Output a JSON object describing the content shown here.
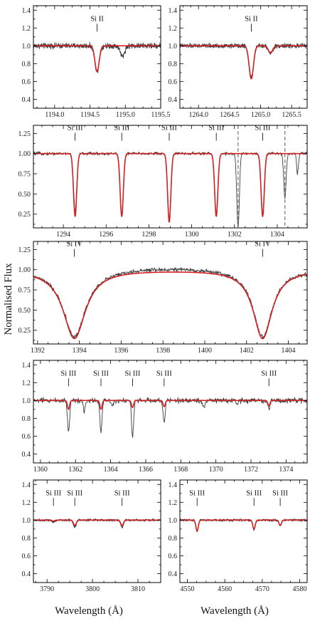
{
  "figure": {
    "ylabel": "Normalised Flux",
    "xlabel": "Wavelength (Å)",
    "colors": {
      "observed": "#3d3d3d",
      "model": "#d42020",
      "telluric_marker": "#777777"
    }
  },
  "chart_data": [
    {
      "type": "line",
      "panel": "1194",
      "xlim": [
        1193.7,
        1195.5
      ],
      "ylim": [
        0.3,
        1.45
      ],
      "xticks": [
        1194.0,
        1194.5,
        1195.0,
        1195.5
      ],
      "xtick_labels": [
        "1194.0",
        "1194.5",
        "1195.0",
        "1195.5"
      ],
      "yticks": [
        0.4,
        0.6,
        0.8,
        1.0,
        1.2,
        1.4
      ],
      "ytick_labels": [
        "0.4",
        "0.6",
        "0.8",
        "1.0",
        "1.2",
        "1.4"
      ],
      "series": [],
      "lines": [
        {
          "label": "Si II",
          "x": 1194.6,
          "model_depth": 0.29,
          "obs_depth": 0.29,
          "width": 0.03,
          "marked": true
        },
        {
          "label": "",
          "x": 1194.96,
          "model_depth": 0.0,
          "obs_depth": 0.12,
          "width": 0.03,
          "marked": false
        }
      ],
      "noise": 0.018
    },
    {
      "type": "line",
      "panel": "1265",
      "xlim": [
        1263.7,
        1265.75
      ],
      "ylim": [
        0.3,
        1.45
      ],
      "xticks": [
        1264.0,
        1264.5,
        1265.0,
        1265.5
      ],
      "xtick_labels": [
        "1264.0",
        "1264.5",
        "1265.0",
        "1265.5"
      ],
      "yticks": [
        0.4,
        0.6,
        0.8,
        1.0,
        1.2,
        1.4
      ],
      "ytick_labels": [
        "0.4",
        "0.6",
        "0.8",
        "1.0",
        "1.2",
        "1.4"
      ],
      "series": [],
      "lines": [
        {
          "label": "Si II",
          "x": 1264.85,
          "model_depth": 0.37,
          "obs_depth": 0.36,
          "width": 0.035,
          "marked": true
        },
        {
          "label": "",
          "x": 1265.16,
          "model_depth": 0.08,
          "obs_depth": 0.08,
          "width": 0.035,
          "marked": false
        }
      ],
      "noise": 0.015
    },
    {
      "type": "line",
      "panel": "1298",
      "xlim": [
        1292.6,
        1305.4
      ],
      "ylim": [
        0.08,
        1.35
      ],
      "xticks": [
        1294,
        1296,
        1298,
        1300,
        1302,
        1304
      ],
      "xtick_labels": [
        "1294",
        "1296",
        "1298",
        "1300",
        "1302",
        "1304"
      ],
      "yticks": [
        0.25,
        0.5,
        0.75,
        1.0,
        1.25
      ],
      "ytick_labels": [
        "0.25",
        "0.50",
        "0.75",
        "1.00",
        "1.25"
      ],
      "series": [],
      "lines": [
        {
          "label": "Si III",
          "x": 1294.55,
          "model_depth": 0.78,
          "obs_depth": 0.72,
          "width": 0.075,
          "marked": true
        },
        {
          "label": "Si III",
          "x": 1296.73,
          "model_depth": 0.78,
          "obs_depth": 0.74,
          "width": 0.075,
          "marked": true
        },
        {
          "label": "Si III",
          "x": 1298.95,
          "model_depth": 0.85,
          "obs_depth": 0.8,
          "width": 0.075,
          "marked": true
        },
        {
          "label": "Si III",
          "x": 1301.15,
          "model_depth": 0.78,
          "obs_depth": 0.74,
          "width": 0.075,
          "marked": true
        },
        {
          "label": "Si III",
          "x": 1303.32,
          "model_depth": 0.78,
          "obs_depth": 0.74,
          "width": 0.075,
          "marked": true
        },
        {
          "label": "",
          "x": 1302.17,
          "model_depth": 0.0,
          "obs_depth": 0.92,
          "width": 0.06,
          "marked": false
        },
        {
          "label": "",
          "x": 1304.36,
          "model_depth": 0.0,
          "obs_depth": 0.55,
          "width": 0.055,
          "marked": false
        },
        {
          "label": "",
          "x": 1304.95,
          "model_depth": 0.0,
          "obs_depth": 0.25,
          "width": 0.04,
          "marked": false
        }
      ],
      "telluric_markers": [
        1302.17,
        1304.36
      ],
      "noise": 0.012
    },
    {
      "type": "line",
      "panel": "1398",
      "xlim": [
        1391.8,
        1404.9
      ],
      "ylim": [
        0.08,
        1.35
      ],
      "xticks": [
        1392,
        1394,
        1396,
        1398,
        1400,
        1402,
        1404
      ],
      "xtick_labels": [
        "1392",
        "1394",
        "1396",
        "1398",
        "1400",
        "1402",
        "1404"
      ],
      "yticks": [
        0.25,
        0.5,
        0.75,
        1.0,
        1.25
      ],
      "ytick_labels": [
        "0.25",
        "0.50",
        "0.75",
        "1.00",
        "1.25"
      ],
      "series": [],
      "lines": [
        {
          "label": "Si IV",
          "x": 1393.76,
          "model_depth": 0.85,
          "obs_depth": 0.83,
          "width": 0.65,
          "profile": "lorentz",
          "marked": true
        },
        {
          "label": "Si IV",
          "x": 1402.77,
          "model_depth": 0.85,
          "obs_depth": 0.83,
          "width": 0.55,
          "profile": "lorentz",
          "marked": true
        }
      ],
      "noise": 0.015
    },
    {
      "type": "line",
      "panel": "1367",
      "xlim": [
        1359.6,
        1375.2
      ],
      "ylim": [
        0.3,
        1.45
      ],
      "xticks": [
        1360,
        1362,
        1364,
        1366,
        1368,
        1370,
        1372,
        1374
      ],
      "xtick_labels": [
        "1360",
        "1362",
        "1364",
        "1366",
        "1368",
        "1370",
        "1372",
        "1374"
      ],
      "yticks": [
        0.4,
        0.6,
        0.8,
        1.0,
        1.2,
        1.4
      ],
      "ytick_labels": [
        "0.4",
        "0.6",
        "0.8",
        "1.0",
        "1.2",
        "1.4"
      ],
      "series": [],
      "lines": [
        {
          "label": "Si III",
          "x": 1361.6,
          "model_depth": 0.1,
          "obs_depth": 0.35,
          "width": 0.06,
          "marked": true
        },
        {
          "label": "Si III",
          "x": 1363.45,
          "model_depth": 0.1,
          "obs_depth": 0.34,
          "width": 0.06,
          "marked": true
        },
        {
          "label": "Si III",
          "x": 1365.25,
          "model_depth": 0.08,
          "obs_depth": 0.41,
          "width": 0.06,
          "marked": true
        },
        {
          "label": "Si III",
          "x": 1367.05,
          "model_depth": 0.07,
          "obs_depth": 0.25,
          "width": 0.06,
          "marked": true
        },
        {
          "label": "Si III",
          "x": 1373.02,
          "model_depth": 0.06,
          "obs_depth": 0.1,
          "width": 0.06,
          "marked": true
        },
        {
          "label": "",
          "x": 1362.5,
          "model_depth": 0.0,
          "obs_depth": 0.12,
          "width": 0.05,
          "marked": false
        },
        {
          "label": "",
          "x": 1364.1,
          "model_depth": 0.0,
          "obs_depth": 0.06,
          "width": 0.05,
          "marked": false
        },
        {
          "label": "",
          "x": 1369.3,
          "model_depth": 0.0,
          "obs_depth": 0.08,
          "width": 0.06,
          "marked": false
        },
        {
          "label": "",
          "x": 1371.2,
          "model_depth": 0.0,
          "obs_depth": 0.05,
          "width": 0.06,
          "marked": false
        }
      ],
      "noise": 0.018
    },
    {
      "type": "line",
      "panel": "3800",
      "xlim": [
        3787.0,
        3815.0
      ],
      "ylim": [
        0.3,
        1.45
      ],
      "xticks": [
        3790,
        3800,
        3810
      ],
      "xtick_labels": [
        "3790",
        "3800",
        "3810"
      ],
      "yticks": [
        0.4,
        0.6,
        0.8,
        1.0,
        1.2,
        1.4
      ],
      "ytick_labels": [
        "0.4",
        "0.6",
        "0.8",
        "1.0",
        "1.2",
        "1.4"
      ],
      "series": [],
      "lines": [
        {
          "label": "Si III",
          "x": 3791.4,
          "model_depth": 0.01,
          "obs_depth": 0.02,
          "width": 0.3,
          "marked": true
        },
        {
          "label": "Si III",
          "x": 3796.1,
          "model_depth": 0.06,
          "obs_depth": 0.08,
          "width": 0.3,
          "marked": true
        },
        {
          "label": "Si III",
          "x": 3806.5,
          "model_depth": 0.06,
          "obs_depth": 0.08,
          "width": 0.3,
          "marked": true
        }
      ],
      "noise": 0.008
    },
    {
      "type": "line",
      "panel": "4565",
      "xlim": [
        4548.0,
        4582.0
      ],
      "ylim": [
        0.3,
        1.45
      ],
      "xticks": [
        4550,
        4560,
        4570,
        4580
      ],
      "xtick_labels": [
        "4550",
        "4560",
        "4570",
        "4580"
      ],
      "yticks": [
        0.4,
        0.6,
        0.8,
        1.0,
        1.2,
        1.4
      ],
      "ytick_labels": [
        "0.4",
        "0.6",
        "0.8",
        "1.0",
        "1.2",
        "1.4"
      ],
      "series": [],
      "lines": [
        {
          "label": "Si III",
          "x": 4552.6,
          "model_depth": 0.12,
          "obs_depth": 0.13,
          "width": 0.32,
          "marked": true
        },
        {
          "label": "Si III",
          "x": 4567.8,
          "model_depth": 0.1,
          "obs_depth": 0.11,
          "width": 0.32,
          "marked": true
        },
        {
          "label": "Si III",
          "x": 4574.8,
          "model_depth": 0.06,
          "obs_depth": 0.06,
          "width": 0.32,
          "marked": true
        }
      ],
      "noise": 0.008
    }
  ]
}
